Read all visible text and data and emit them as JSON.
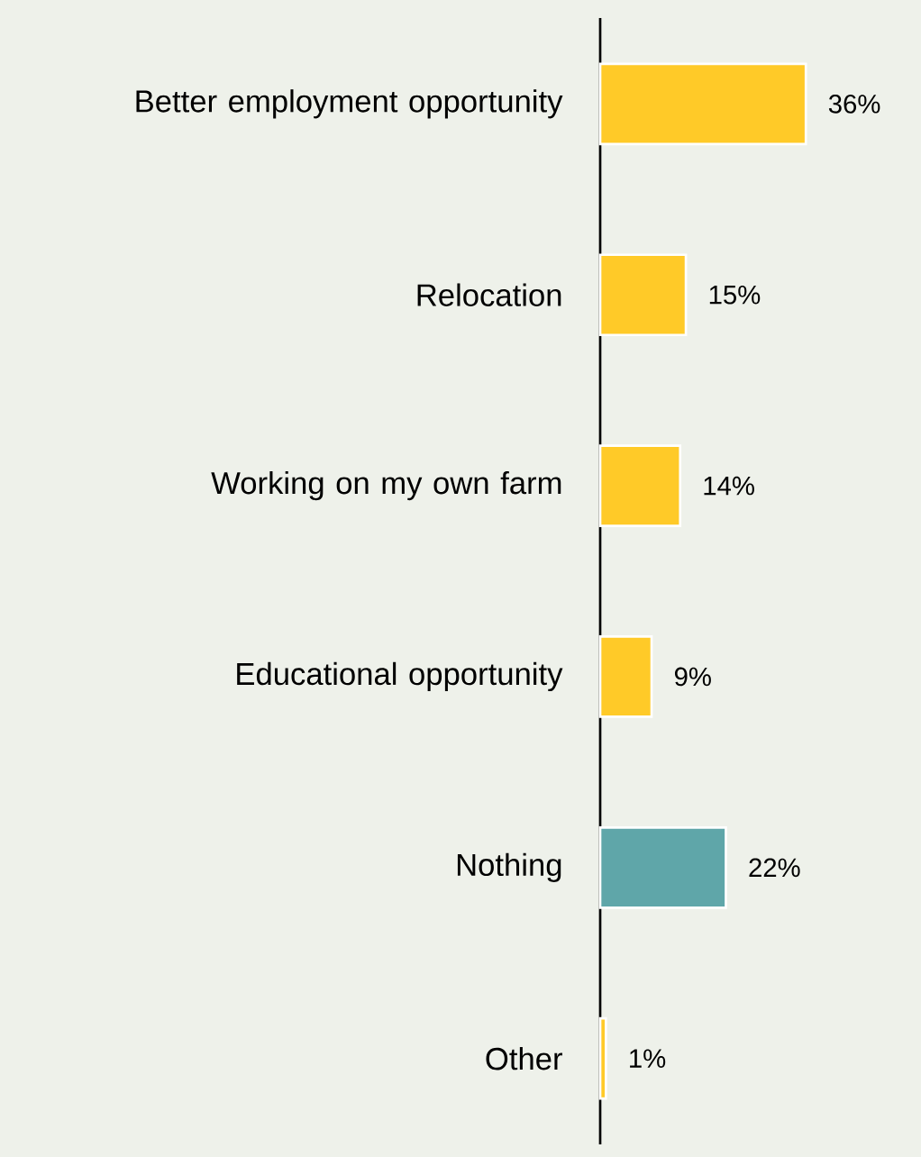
{
  "chart_data": {
    "type": "bar",
    "orientation": "horizontal",
    "categories": [
      "Better employment opportunity",
      "Relocation",
      "Working on my own farm",
      "Educational opportunity",
      "Nothing",
      "Other"
    ],
    "values": [
      36,
      15,
      14,
      9,
      22,
      1
    ],
    "colors": [
      "#ffca28",
      "#ffca28",
      "#ffca28",
      "#ffca28",
      "#5fa6a9",
      "#ffca28"
    ],
    "value_labels": [
      "36%",
      "15%",
      "14%",
      "9%",
      "22%",
      "1%"
    ]
  }
}
